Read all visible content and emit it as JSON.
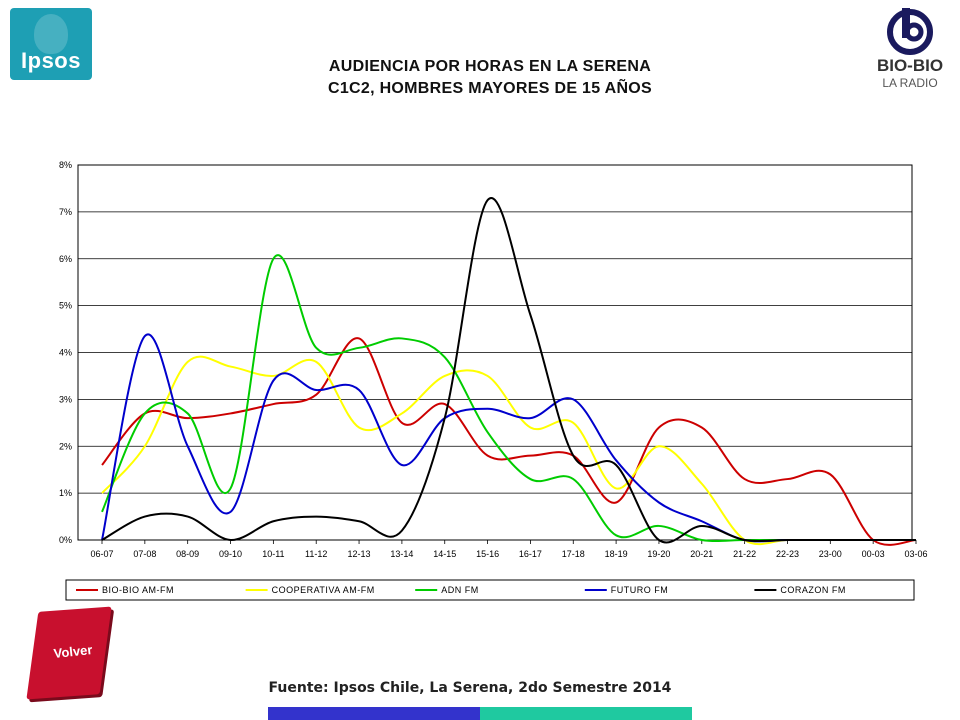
{
  "header": {
    "logo_left": "Ipsos",
    "logo_right_line1": "BIO-BIO",
    "logo_right_line2": "LA RADIO",
    "title_line1": "AUDIENCIA POR HORAS EN LA SERENA",
    "title_line2": "C1C2, HOMBRES MAYORES DE 15 AÑOS"
  },
  "chart_data": {
    "type": "line",
    "title": "",
    "xlabel": "",
    "ylabel": "",
    "ylim": [
      0,
      8
    ],
    "yticks": [
      "0%",
      "1%",
      "2%",
      "3%",
      "4%",
      "5%",
      "6%",
      "7%",
      "8%"
    ],
    "grid": "horizontal",
    "legend_position": "bottom",
    "categories": [
      "06-07",
      "07-08",
      "08-09",
      "09-10",
      "10-11",
      "11-12",
      "12-13",
      "13-14",
      "14-15",
      "15-16",
      "16-17",
      "17-18",
      "18-19",
      "19-20",
      "20-21",
      "21-22",
      "22-23",
      "23-00",
      "00-03",
      "03-06"
    ],
    "series": [
      {
        "name": "BIO-BIO AM-FM",
        "color": "#cc0000",
        "values": [
          1.6,
          2.7,
          2.6,
          2.7,
          2.9,
          3.1,
          4.3,
          2.5,
          2.9,
          1.8,
          1.8,
          1.8,
          0.8,
          2.4,
          2.4,
          1.3,
          1.3,
          1.4,
          0.0,
          0.0
        ]
      },
      {
        "name": "COOPERATIVA AM-FM",
        "color": "#ffff00",
        "values": [
          1.0,
          2.0,
          3.8,
          3.7,
          3.5,
          3.8,
          2.4,
          2.7,
          3.5,
          3.5,
          2.4,
          2.5,
          1.1,
          2.0,
          1.2,
          0.0,
          0.0,
          0.0,
          0.0,
          0.0
        ]
      },
      {
        "name": "ADN FM",
        "color": "#00cc00",
        "values": [
          0.6,
          2.7,
          2.7,
          1.1,
          6.0,
          4.1,
          4.1,
          4.3,
          3.9,
          2.3,
          1.3,
          1.3,
          0.1,
          0.3,
          0.0,
          0.0,
          0.0,
          0.0,
          0.0,
          0.0
        ]
      },
      {
        "name": "FUTURO FM",
        "color": "#0000cc",
        "values": [
          0.0,
          4.35,
          2.0,
          0.6,
          3.4,
          3.2,
          3.2,
          1.6,
          2.6,
          2.8,
          2.6,
          3.0,
          1.7,
          0.8,
          0.4,
          0.0,
          0.0,
          0.0,
          0.0,
          0.0
        ]
      },
      {
        "name": "CORAZON FM",
        "color": "#000000",
        "values": [
          0.0,
          0.5,
          0.5,
          0.0,
          0.4,
          0.5,
          0.4,
          0.2,
          2.6,
          7.25,
          4.8,
          1.8,
          1.6,
          0.0,
          0.3,
          0.0,
          0.0,
          0.0,
          0.0,
          0.0
        ]
      }
    ]
  },
  "footer": {
    "volver_label": "Volver",
    "source": "Fuente: Ipsos Chile, La Serena, 2do Semestre 2014"
  }
}
